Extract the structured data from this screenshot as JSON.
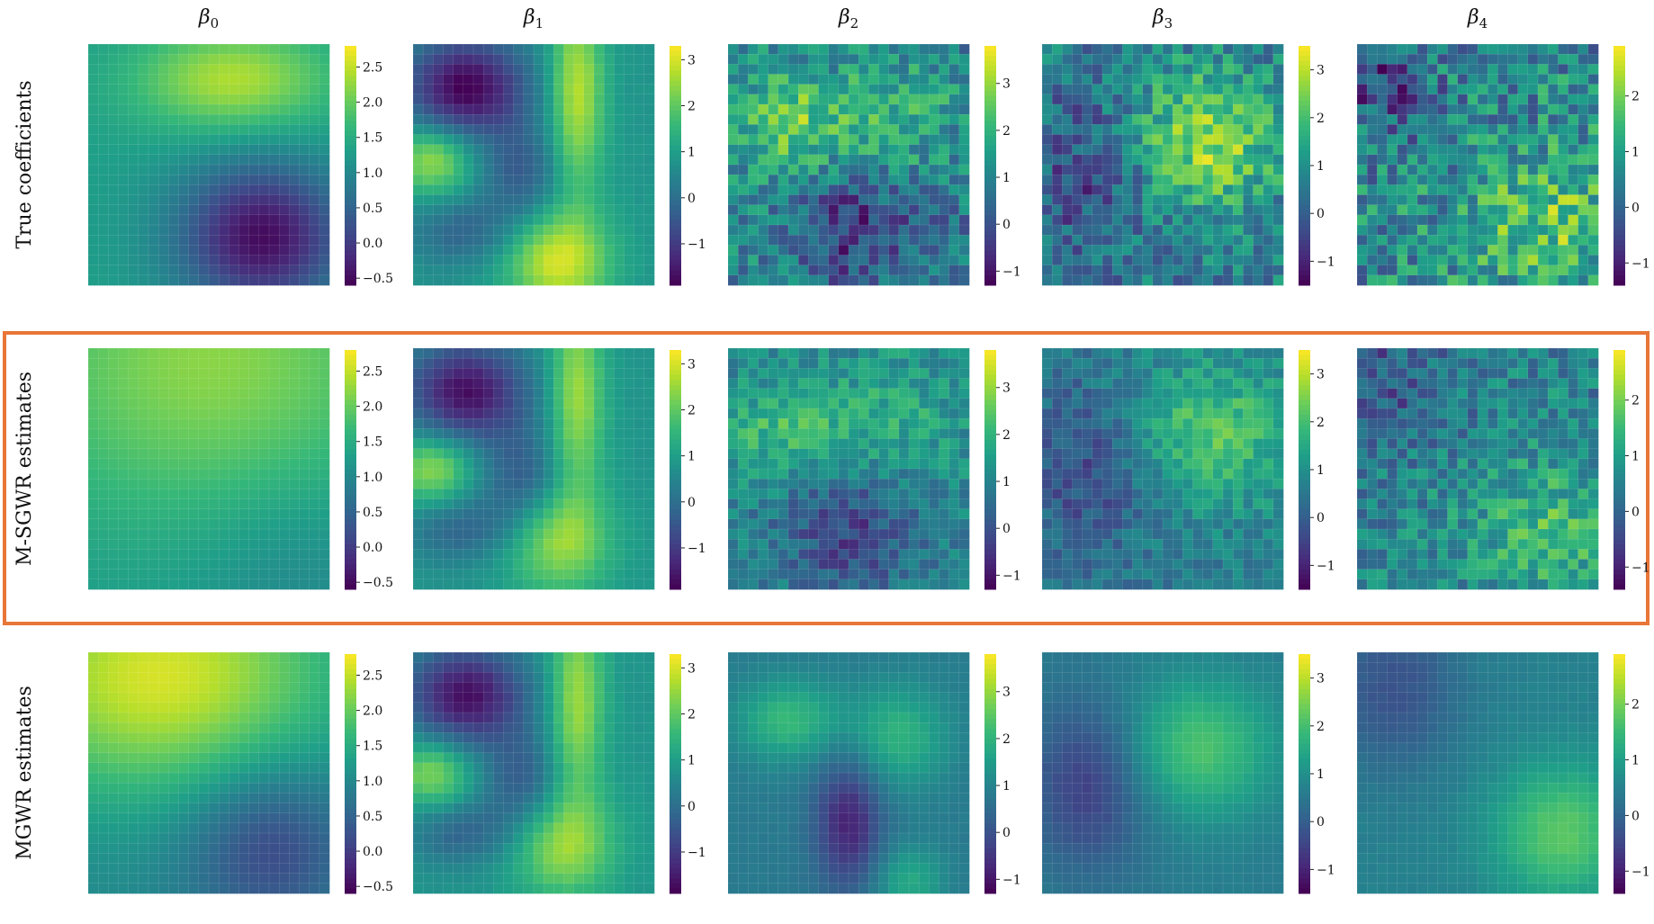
{
  "column_titles": [
    {
      "symbol": "β",
      "sub": "0"
    },
    {
      "symbol": "β",
      "sub": "1"
    },
    {
      "symbol": "β",
      "sub": "2"
    },
    {
      "symbol": "β",
      "sub": "3"
    },
    {
      "symbol": "β",
      "sub": "4"
    }
  ],
  "row_labels": [
    "True coefficients",
    "M-SGWR estimates",
    "MGWR estimates"
  ],
  "highlight": {
    "row": "M-SGWR estimates",
    "color": "#E87638"
  },
  "colormap": "viridis",
  "chart_data": {
    "type": "heatmap",
    "colorbars": [
      {
        "coefficient": "β0",
        "range": [
          -0.6,
          2.8
        ],
        "ticks": [
          -0.5,
          0.0,
          0.5,
          1.0,
          1.5,
          2.0,
          2.5
        ],
        "tick_labels": [
          "−0.5",
          "0.0",
          "0.5",
          "1.0",
          "1.5",
          "2.0",
          "2.5"
        ]
      },
      {
        "coefficient": "β1",
        "range": [
          -1.9,
          3.3
        ],
        "ticks": [
          -1,
          0,
          1,
          2,
          3
        ],
        "tick_labels": [
          "−1",
          "0",
          "1",
          "2",
          "3"
        ]
      },
      {
        "coefficient": "β2",
        "range": [
          -1.3,
          3.8
        ],
        "ticks": [
          -1,
          0,
          1,
          2,
          3
        ],
        "tick_labels": [
          "−1",
          "0",
          "1",
          "2",
          "3"
        ]
      },
      {
        "coefficient": "β3",
        "range": [
          -1.5,
          3.5
        ],
        "ticks": [
          -1,
          0,
          1,
          2,
          3
        ],
        "tick_labels": [
          "−1",
          "0",
          "1",
          "2",
          "3"
        ]
      },
      {
        "coefficient": "β4",
        "range": [
          -1.4,
          2.9
        ],
        "ticks": [
          -1,
          0,
          1,
          2
        ],
        "tick_labels": [
          "−1",
          "0",
          "1",
          "2"
        ]
      }
    ],
    "rows": [
      {
        "name": "True coefficients",
        "maps": [
          {
            "coefficient": "β0",
            "base": 1.3,
            "noise": 0.0,
            "features": [
              {
                "cx": 0.72,
                "cy": 0.8,
                "sx": 0.25,
                "sy": 0.22,
                "amp": -1.8
              },
              {
                "cx": 0.6,
                "cy": 0.15,
                "sx": 0.28,
                "sy": 0.15,
                "amp": 1.1
              }
            ]
          },
          {
            "coefficient": "β1",
            "base": 0.8,
            "noise": 0.05,
            "features": [
              {
                "cx": 0.22,
                "cy": 0.18,
                "sx": 0.18,
                "sy": 0.15,
                "amp": -2.7
              },
              {
                "cx": 0.08,
                "cy": 0.48,
                "sx": 0.12,
                "sy": 0.1,
                "amp": 1.8
              },
              {
                "cx": 0.68,
                "cy": 0.2,
                "sx": 0.08,
                "sy": 0.3,
                "amp": 2.0
              },
              {
                "cx": 0.6,
                "cy": 0.9,
                "sx": 0.15,
                "sy": 0.15,
                "amp": 2.2
              },
              {
                "cx": 0.45,
                "cy": 0.55,
                "sx": 0.12,
                "sy": 0.15,
                "amp": -1.2
              },
              {
                "cx": 0.2,
                "cy": 0.78,
                "sx": 0.15,
                "sy": 0.1,
                "amp": -1.0
              }
            ]
          },
          {
            "coefficient": "β2",
            "base": 1.0,
            "noise": 0.9,
            "features": [
              {
                "cx": 0.28,
                "cy": 0.33,
                "sx": 0.18,
                "sy": 0.15,
                "amp": 1.6
              },
              {
                "cx": 0.72,
                "cy": 0.28,
                "sx": 0.15,
                "sy": 0.15,
                "amp": 1.0
              },
              {
                "cx": 0.5,
                "cy": 0.78,
                "sx": 0.15,
                "sy": 0.18,
                "amp": -1.5
              },
              {
                "cx": 0.85,
                "cy": 0.75,
                "sx": 0.1,
                "sy": 0.1,
                "amp": -1.0
              }
            ]
          },
          {
            "coefficient": "β3",
            "base": 0.6,
            "noise": 0.9,
            "features": [
              {
                "cx": 0.68,
                "cy": 0.4,
                "sx": 0.22,
                "sy": 0.2,
                "amp": 2.1
              },
              {
                "cx": 0.2,
                "cy": 0.55,
                "sx": 0.18,
                "sy": 0.25,
                "amp": -1.0
              }
            ]
          },
          {
            "coefficient": "β4",
            "base": 0.6,
            "noise": 1.0,
            "features": [
              {
                "cx": 0.8,
                "cy": 0.75,
                "sx": 0.25,
                "sy": 0.2,
                "amp": 1.2
              },
              {
                "cx": 0.1,
                "cy": 0.15,
                "sx": 0.15,
                "sy": 0.15,
                "amp": -1.2
              }
            ]
          }
        ]
      },
      {
        "name": "M-SGWR estimates",
        "maps": [
          {
            "coefficient": "β0",
            "base": 1.2,
            "noise": 0.0,
            "features": [
              {
                "cx": 0.5,
                "cy": 0.05,
                "sx": 0.6,
                "sy": 0.5,
                "amp": 1.0
              },
              {
                "cx": 0.85,
                "cy": 0.9,
                "sx": 0.3,
                "sy": 0.3,
                "amp": -0.3
              }
            ]
          },
          {
            "coefficient": "β1",
            "base": 0.8,
            "noise": 0.05,
            "features": [
              {
                "cx": 0.22,
                "cy": 0.18,
                "sx": 0.18,
                "sy": 0.15,
                "amp": -2.5
              },
              {
                "cx": 0.08,
                "cy": 0.5,
                "sx": 0.12,
                "sy": 0.1,
                "amp": 1.7
              },
              {
                "cx": 0.68,
                "cy": 0.2,
                "sx": 0.08,
                "sy": 0.3,
                "amp": 1.8
              },
              {
                "cx": 0.6,
                "cy": 0.8,
                "sx": 0.15,
                "sy": 0.15,
                "amp": 1.7
              },
              {
                "cx": 0.45,
                "cy": 0.55,
                "sx": 0.12,
                "sy": 0.15,
                "amp": -1.2
              },
              {
                "cx": 0.2,
                "cy": 0.75,
                "sx": 0.15,
                "sy": 0.1,
                "amp": -1.0
              }
            ]
          },
          {
            "coefficient": "β2",
            "base": 1.0,
            "noise": 0.6,
            "features": [
              {
                "cx": 0.25,
                "cy": 0.35,
                "sx": 0.2,
                "sy": 0.15,
                "amp": 1.2
              },
              {
                "cx": 0.7,
                "cy": 0.3,
                "sx": 0.2,
                "sy": 0.2,
                "amp": 0.8
              },
              {
                "cx": 0.5,
                "cy": 0.75,
                "sx": 0.2,
                "sy": 0.2,
                "amp": -1.3
              }
            ]
          },
          {
            "coefficient": "β3",
            "base": 0.6,
            "noise": 0.5,
            "features": [
              {
                "cx": 0.7,
                "cy": 0.35,
                "sx": 0.25,
                "sy": 0.22,
                "amp": 1.5
              },
              {
                "cx": 0.2,
                "cy": 0.5,
                "sx": 0.2,
                "sy": 0.25,
                "amp": -1.0
              }
            ]
          },
          {
            "coefficient": "β4",
            "base": 0.5,
            "noise": 0.7,
            "features": [
              {
                "cx": 0.8,
                "cy": 0.75,
                "sx": 0.25,
                "sy": 0.2,
                "amp": 1.0
              },
              {
                "cx": 0.1,
                "cy": 0.15,
                "sx": 0.2,
                "sy": 0.2,
                "amp": -0.8
              }
            ]
          }
        ]
      },
      {
        "name": "MGWR estimates",
        "maps": [
          {
            "coefficient": "β0",
            "base": 1.0,
            "noise": 0.0,
            "features": [
              {
                "cx": 0.3,
                "cy": 0.1,
                "sx": 0.5,
                "sy": 0.35,
                "amp": 1.6
              },
              {
                "cx": 0.75,
                "cy": 0.8,
                "sx": 0.25,
                "sy": 0.25,
                "amp": -0.9
              }
            ]
          },
          {
            "coefficient": "β1",
            "base": 0.8,
            "noise": 0.05,
            "features": [
              {
                "cx": 0.22,
                "cy": 0.18,
                "sx": 0.18,
                "sy": 0.15,
                "amp": -2.5
              },
              {
                "cx": 0.08,
                "cy": 0.5,
                "sx": 0.12,
                "sy": 0.1,
                "amp": 1.6
              },
              {
                "cx": 0.68,
                "cy": 0.2,
                "sx": 0.08,
                "sy": 0.3,
                "amp": 1.8
              },
              {
                "cx": 0.62,
                "cy": 0.8,
                "sx": 0.15,
                "sy": 0.15,
                "amp": 1.7
              },
              {
                "cx": 0.45,
                "cy": 0.55,
                "sx": 0.12,
                "sy": 0.15,
                "amp": -1.2
              },
              {
                "cx": 0.2,
                "cy": 0.75,
                "sx": 0.15,
                "sy": 0.1,
                "amp": -1.0
              }
            ]
          },
          {
            "coefficient": "β2",
            "base": 0.8,
            "noise": 0.05,
            "features": [
              {
                "cx": 0.25,
                "cy": 0.28,
                "sx": 0.15,
                "sy": 0.12,
                "amp": 1.3
              },
              {
                "cx": 0.7,
                "cy": 0.35,
                "sx": 0.15,
                "sy": 0.15,
                "amp": 1.2
              },
              {
                "cx": 0.5,
                "cy": 0.7,
                "sx": 0.1,
                "sy": 0.2,
                "amp": -1.6
              },
              {
                "cx": 0.75,
                "cy": 0.95,
                "sx": 0.1,
                "sy": 0.1,
                "amp": 1.0
              }
            ]
          },
          {
            "coefficient": "β3",
            "base": 0.6,
            "noise": 0.05,
            "features": [
              {
                "cx": 0.65,
                "cy": 0.4,
                "sx": 0.22,
                "sy": 0.2,
                "amp": 1.5
              },
              {
                "cx": 0.2,
                "cy": 0.55,
                "sx": 0.18,
                "sy": 0.25,
                "amp": -1.2
              }
            ]
          },
          {
            "coefficient": "β4",
            "base": 0.5,
            "noise": 0.05,
            "features": [
              {
                "cx": 0.85,
                "cy": 0.75,
                "sx": 0.2,
                "sy": 0.2,
                "amp": 1.3
              },
              {
                "cx": 0.15,
                "cy": 0.15,
                "sx": 0.2,
                "sy": 0.25,
                "amp": -0.8
              }
            ]
          }
        ]
      }
    ]
  }
}
